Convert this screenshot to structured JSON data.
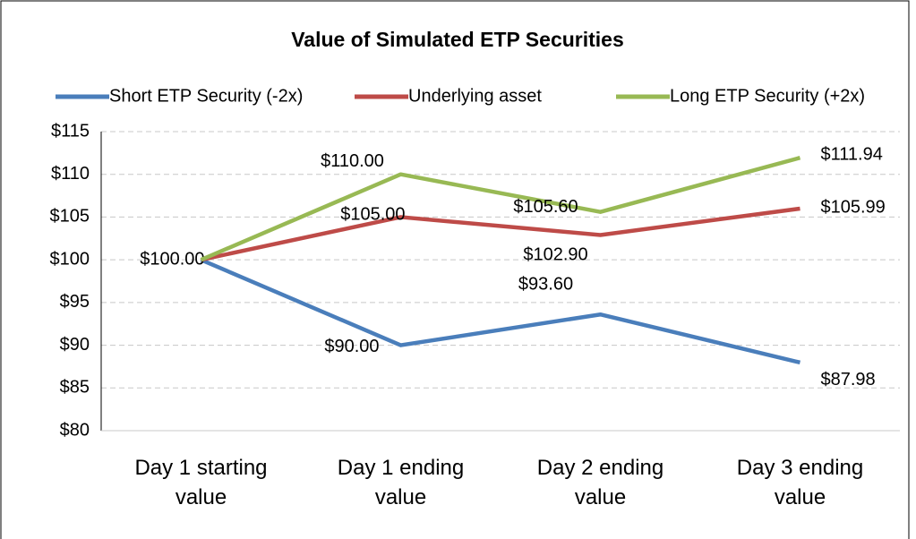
{
  "chart_data": {
    "type": "line",
    "title": "Value of Simulated ETP Securities",
    "categories": [
      "Day 1 starting value",
      "Day 1 ending value",
      "Day 2 ending value",
      "Day 3 ending value"
    ],
    "series": [
      {
        "name": "Short ETP Security (-2x)",
        "color": "#4a7ebb",
        "values": [
          100,
          90,
          93.6,
          87.98
        ],
        "value_labels": [
          "$100.00",
          "$90.00",
          "$93.60",
          "$87.98"
        ]
      },
      {
        "name": "Underlying asset",
        "color": "#be4b48",
        "values": [
          100,
          105,
          102.9,
          105.99
        ],
        "value_labels": [
          null,
          "$105.00",
          "$102.90",
          "$105.99"
        ]
      },
      {
        "name": "Long ETP Security (+2x)",
        "color": "#98b954",
        "values": [
          100,
          110,
          105.6,
          111.94
        ],
        "value_labels": [
          null,
          "$110.00",
          "$105.60",
          "$111.94"
        ]
      }
    ],
    "ylim": [
      80,
      115
    ],
    "yticks": [
      {
        "value": 80,
        "label": "$80"
      },
      {
        "value": 85,
        "label": "$85"
      },
      {
        "value": 90,
        "label": "$90"
      },
      {
        "value": 95,
        "label": "$95"
      },
      {
        "value": 100,
        "label": "$100"
      },
      {
        "value": 105,
        "label": "$105"
      },
      {
        "value": 110,
        "label": "$110"
      },
      {
        "value": 115,
        "label": "$115"
      }
    ],
    "grid": true,
    "legend": "top"
  }
}
